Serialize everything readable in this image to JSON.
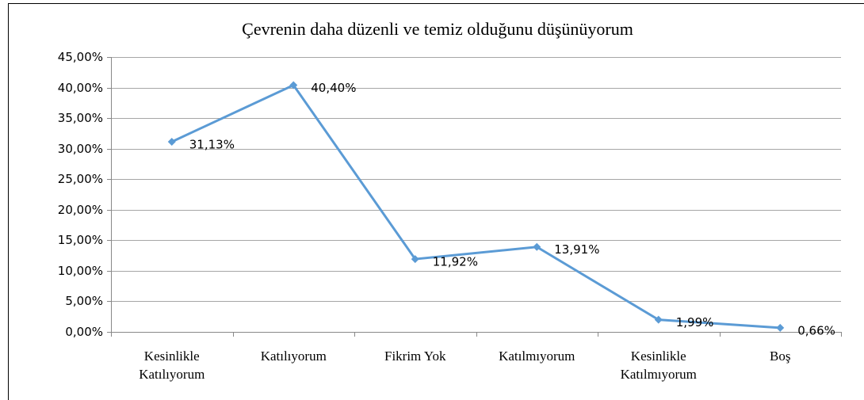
{
  "chart_data": {
    "type": "line",
    "title": "Çevrenin daha düzenli ve temiz olduğunu düşünüyorum",
    "categories": [
      "Kesinlikle Katılıyorum",
      "Katılıyorum",
      "Fikrim Yok",
      "Katılmıyorum",
      "Kesinlikle Katılmıyorum",
      "Boş"
    ],
    "values": [
      31.13,
      40.4,
      11.92,
      13.91,
      1.99,
      0.66
    ],
    "value_labels": [
      "31,13%",
      "40,40%",
      "11,92%",
      "13,91%",
      "1,99%",
      "0,66%"
    ],
    "color": "#5b9bd5",
    "ylim": [
      0,
      45
    ],
    "yticks": [
      {
        "value": 0,
        "label": "0,00%"
      },
      {
        "value": 5,
        "label": "5,00%"
      },
      {
        "value": 10,
        "label": "10,00%"
      },
      {
        "value": 15,
        "label": "15,00%"
      },
      {
        "value": 20,
        "label": "20,00%"
      },
      {
        "value": 25,
        "label": "25,00%"
      },
      {
        "value": 30,
        "label": "30,00%"
      },
      {
        "value": 35,
        "label": "35,00%"
      },
      {
        "value": 40,
        "label": "40,00%"
      },
      {
        "value": 45,
        "label": "45,00%"
      }
    ],
    "grid": true
  }
}
